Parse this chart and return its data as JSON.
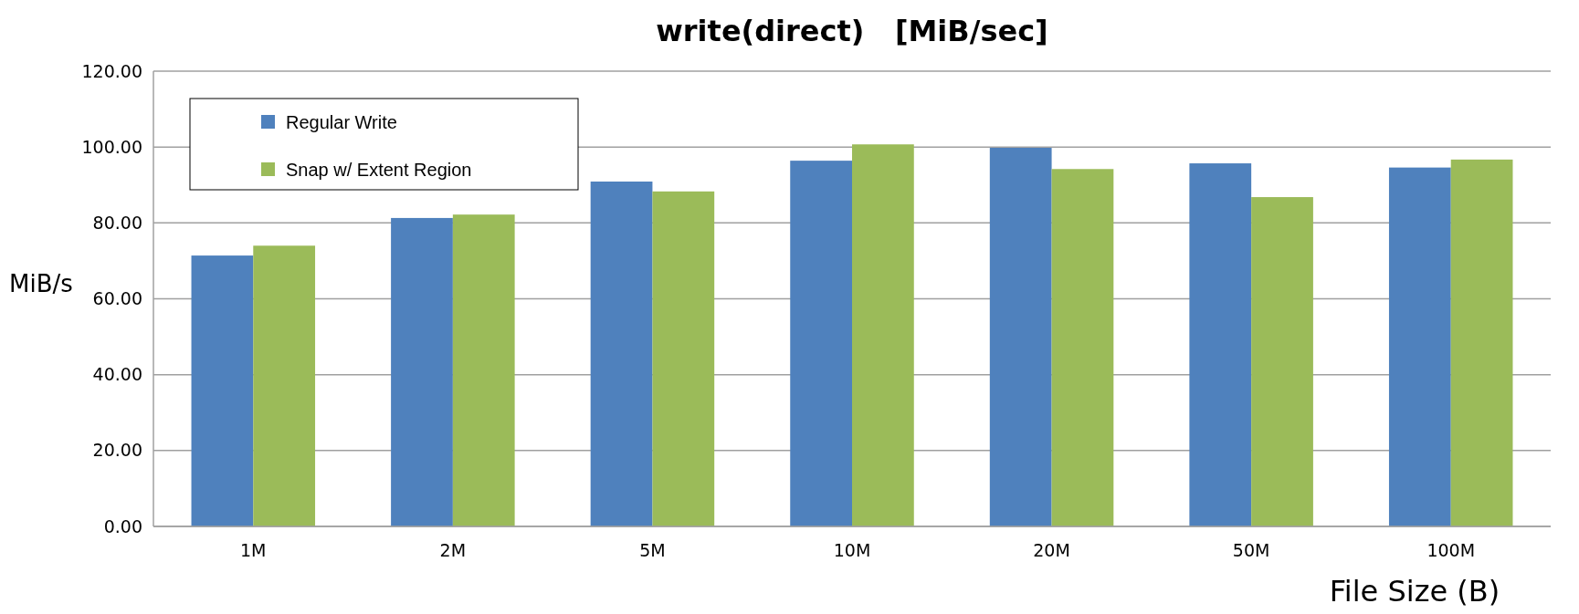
{
  "chart_data": {
    "type": "bar",
    "title": "write(direct)   [MiB/sec]",
    "xlabel": "File Size (B)",
    "ylabel": "MiB/s",
    "categories": [
      "1M",
      "2M",
      "5M",
      "10M",
      "20M",
      "50M",
      "100M"
    ],
    "series": [
      {
        "name": "Regular Write",
        "color": "#4f81bd",
        "values": [
          71.4,
          81.3,
          90.9,
          96.4,
          99.8,
          95.7,
          94.6
        ]
      },
      {
        "name": "Snap w/ Extent Region",
        "color": "#9bbb59",
        "values": [
          74.0,
          82.2,
          88.3,
          100.7,
          94.2,
          86.8,
          96.7
        ]
      }
    ],
    "ylim": [
      0,
      120
    ],
    "yticks": [
      {
        "value": 0,
        "label": "0.00"
      },
      {
        "value": 20,
        "label": "20.00"
      },
      {
        "value": 40,
        "label": "40.00"
      },
      {
        "value": 60,
        "label": "60.00"
      },
      {
        "value": 80,
        "label": "80.00"
      },
      {
        "value": 100,
        "label": "100.00"
      },
      {
        "value": 120,
        "label": "120.00"
      }
    ],
    "grid": "y",
    "legend": "top left"
  }
}
